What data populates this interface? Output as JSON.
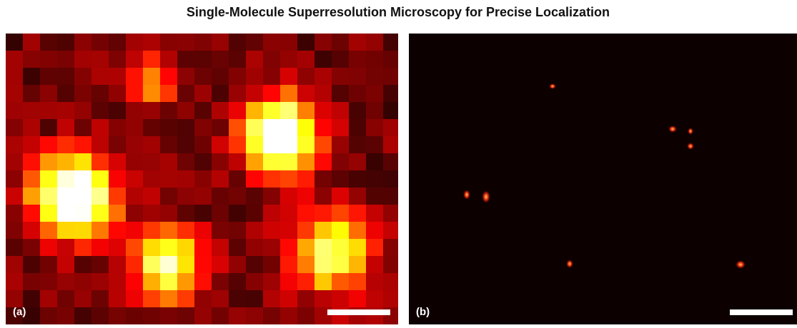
{
  "title": "Single-Molecule Superresolution Microscopy for Precise Localization",
  "panels": [
    {
      "label": "(a)"
    },
    {
      "label": "(b)"
    }
  ]
}
